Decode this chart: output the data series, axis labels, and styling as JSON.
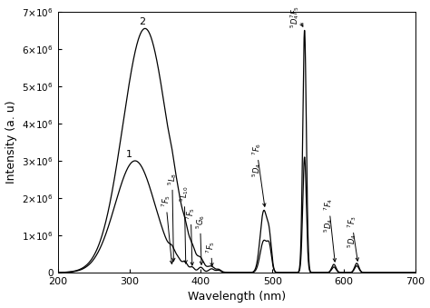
{
  "xlabel": "Wavelength (nm)",
  "ylabel": "Intensity (a. u)",
  "xlim": [
    200,
    700
  ],
  "ylim": [
    0,
    7000000.0
  ],
  "background_color": "#ffffff",
  "yticks": [
    0,
    1000000.0,
    2000000.0,
    3000000.0,
    4000000.0,
    5000000.0,
    6000000.0,
    7000000.0
  ],
  "ytick_labels": [
    "0",
    "1×10$^6$",
    "2×10$^6$",
    "3×10$^6$",
    "4×10$^6$",
    "5×10$^6$",
    "6×10$^6$",
    "7×10$^6$"
  ]
}
